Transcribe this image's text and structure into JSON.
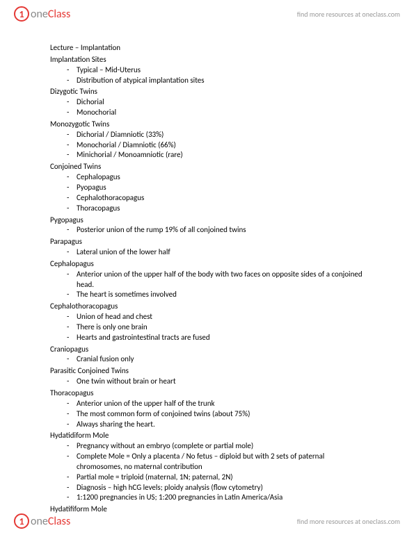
{
  "brand": {
    "name_part1": "one",
    "name_part2": "Class",
    "link_text": "find more resources at oneclass.com"
  },
  "doc": {
    "title": "Lecture – Implantation",
    "sections": [
      {
        "heading": "Implantation Sites",
        "items": [
          "Typical – Mid-Uterus",
          "Distribution of atypical implantation sites"
        ]
      },
      {
        "heading": "Dizygotic Twins",
        "items": [
          "Dichorial",
          "Monochorial"
        ]
      },
      {
        "heading": "Monozygotic Twins",
        "items": [
          "Dichorial / Diamniotic (33%)",
          "Monochorial / Diamniotic (66%)",
          "Minichorial / Monoamniotic (rare)"
        ]
      },
      {
        "heading": "Conjoined Twins",
        "items": [
          "Cephalopagus",
          "Pyopagus",
          "Cephalothoracopagus",
          "Thoracopagus"
        ]
      },
      {
        "heading": "Pygopagus",
        "items": [
          "Posterior union of the rump 19% of all conjoined twins"
        ]
      },
      {
        "heading": "Parapagus",
        "items": [
          "Lateral union of the lower half"
        ]
      },
      {
        "heading": "Cephalopagus",
        "items": [
          "Anterior union of the upper half of the body with two faces on opposite sides of a conjoined head.",
          "The heart is sometimes involved"
        ]
      },
      {
        "heading": "Cephalothoracopagus",
        "items": [
          "Union of head and chest",
          "There is only one brain",
          "Hearts and gastrointestinal tracts are fused"
        ]
      },
      {
        "heading": "Craniopagus",
        "items": [
          "Cranial fusion only"
        ]
      },
      {
        "heading": "Parasitic Conjoined Twins",
        "items": [
          "One twin without brain or heart"
        ]
      },
      {
        "heading": "Thoracopagus",
        "items": [
          "Anterior union of the upper half of the trunk",
          "The most common form of conjoined twins (about 75%)",
          "Always sharing the heart."
        ]
      },
      {
        "heading": "Hydatidiform Mole",
        "items": [
          "Pregnancy without an embryo (complete or partial mole)",
          "Complete Mole = Only a placenta / No fetus – diploid but with 2 sets of paternal chromosomes, no maternal contribution",
          "Partial mole = triploid (maternal, 1N; paternal, 2N)",
          "Diagnosis – high hCG levels; ploidy analysis (flow cytometry)",
          "1:1200 pregnancies in US; 1:200 pregnancies in Latin America/Asia"
        ]
      },
      {
        "heading": "Hydatifiform Mole",
        "items": []
      }
    ]
  }
}
